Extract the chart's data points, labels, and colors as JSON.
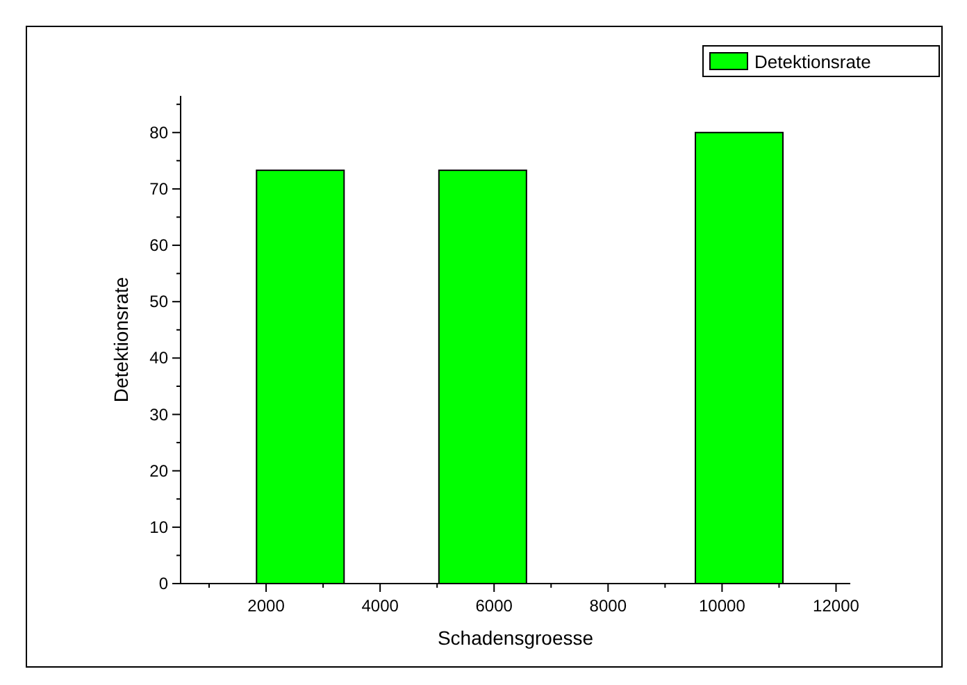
{
  "chart_data": {
    "type": "bar",
    "xlabel": "Schadensgroesse",
    "ylabel": "Detektionsrate",
    "x": [
      2600,
      5800,
      10300
    ],
    "series": [
      {
        "name": "Detektionsrate",
        "color": "#00ff00",
        "values": [
          73.3,
          73.3,
          80
        ]
      }
    ],
    "xlim": [
      500,
      12250
    ],
    "xticks": [
      2000,
      4000,
      6000,
      8000,
      10000,
      12000
    ],
    "ylim": [
      0,
      86.5
    ],
    "yticks": [
      0,
      10,
      20,
      30,
      40,
      50,
      60,
      70,
      80
    ],
    "grid": false,
    "legend": "top right"
  }
}
